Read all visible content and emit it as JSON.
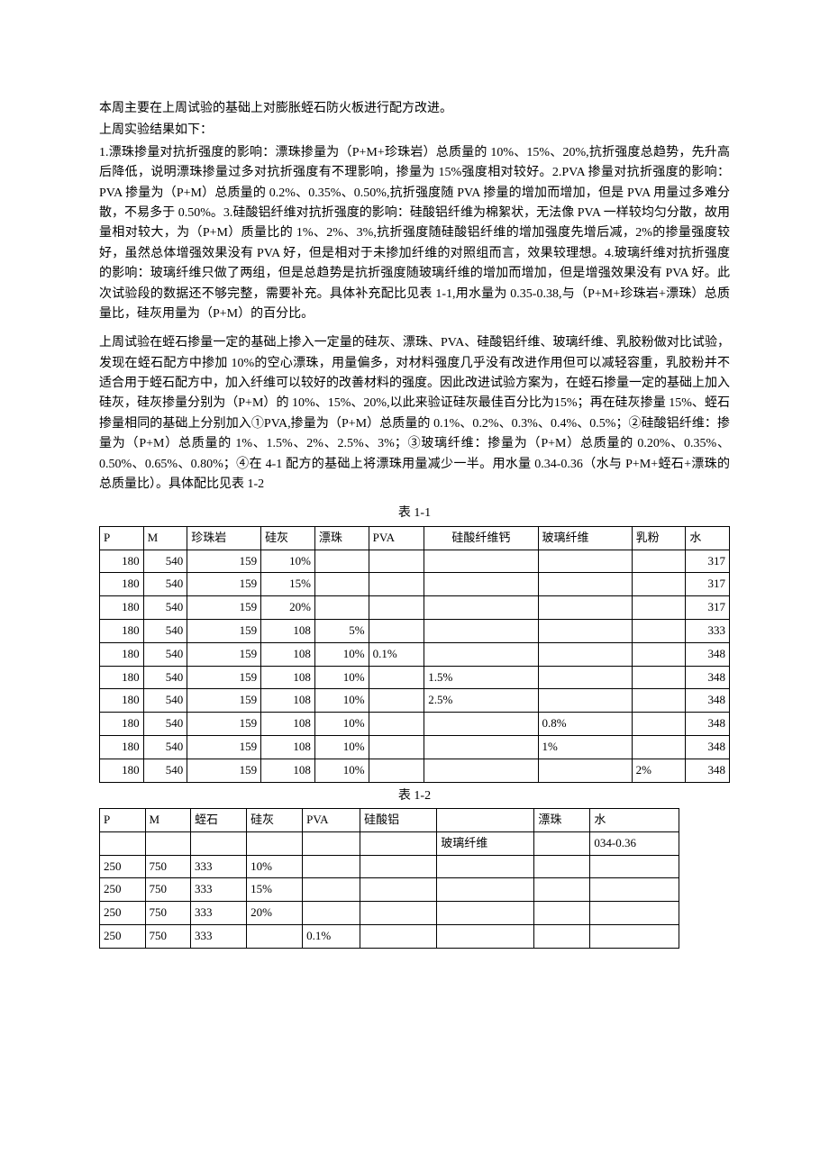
{
  "intro": {
    "line1": "本周主要在上周试验的基础上对膨胀蛭石防火板进行配方改进。",
    "line2": "上周实验结果如下：",
    "para1": "1.漂珠掺量对抗折强度的影响：漂珠掺量为（P+M+珍珠岩）总质量的 10%、15%、20%,抗折强度总趋势，先升高后降低，说明漂珠掺量过多对抗折强度有不理影响，掺量为 15%强度相对较好。2.PVA 掺量对抗折强度的影响：PVA 掺量为（P+M）总质量的 0.2%、0.35%、0.50%,抗折强度随 PVA 掺量的增加而增加，但是 PVA 用量过多难分散，不易多于 0.50%。3.硅酸铝纤维对抗折强度的影响：硅酸铝纤维为棉絮状，无法像 PVA 一样较均匀分散，故用量相对较大，为（P+M）质量比的 1%、2%、3%,抗折强度随硅酸铝纤维的增加强度先增后减，2%的掺量强度较好，虽然总体增强效果没有 PVA 好，但是相对于未掺加纤维的对照组而言，效果较理想。4.玻璃纤维对抗折强度的影响：玻璃纤维只做了两组，但是总趋势是抗折强度随玻璃纤维的增加而增加，但是增强效果没有 PVA 好。此次试验段的数据还不够完整，需要补充。具体补充配比见表 1-1,用水量为 0.35-0.38,与（P+M+珍珠岩+漂珠）总质量比，硅灰用量为（P+M）的百分比。",
    "para2": "上周试验在蛭石掺量一定的基础上掺入一定量的硅灰、漂珠、PVA、硅酸铝纤维、玻璃纤维、乳胶粉做对比试验，发现在蛭石配方中掺加 10%的空心漂珠，用量偏多，对材料强度几乎没有改进作用但可以减轻容重，乳胶粉并不适合用于蛭石配方中，加入纤维可以较好的改善材料的强度。因此改进试验方案为，在蛭石掺量一定的基础上加入硅灰，硅灰掺量分别为（P+M）的 10%、15%、20%,以此来验证硅灰最佳百分比为15%；再在硅灰掺量 15%、蛭石掺量相同的基础上分别加入①PVA,掺量为（P+M）总质量的 0.1%、0.2%、0.3%、0.4%、0.5%；②硅酸铝纤维：掺量为（P+M）总质量的 1%、1.5%、2%、2.5%、3%；③玻璃纤维：掺量为（P+M）总质量的 0.20%、0.35%、0.50%、0.65%、0.80%；④在 4-1 配方的基础上将漂珠用量减少一半。用水量 0.34-0.36（水与 P+M+蛭石+漂珠的总质量比）。具体配比见表 1-2"
  },
  "table1": {
    "caption": "表 1-1",
    "headers": [
      "P",
      "M",
      "珍珠岩",
      "硅灰",
      "漂珠",
      "PVA",
      "硅酸纤维钙",
      "玻璃纤维",
      "乳粉",
      "水"
    ],
    "rows": [
      [
        "180",
        "540",
        "159",
        "10%",
        "",
        "",
        "",
        "",
        "",
        "317"
      ],
      [
        "180",
        "540",
        "159",
        "15%",
        "",
        "",
        "",
        "",
        "",
        "317"
      ],
      [
        "180",
        "540",
        "159",
        "20%",
        "",
        "",
        "",
        "",
        "",
        "317"
      ],
      [
        "180",
        "540",
        "159",
        "108",
        "5%",
        "",
        "",
        "",
        "",
        "333"
      ],
      [
        "180",
        "540",
        "159",
        "108",
        "10%",
        "0.1%",
        "",
        "",
        "",
        "348"
      ],
      [
        "180",
        "540",
        "159",
        "108",
        "10%",
        "",
        "1.5%",
        "",
        "",
        "348"
      ],
      [
        "180",
        "540",
        "159",
        "108",
        "10%",
        "",
        "2.5%",
        "",
        "",
        "348"
      ],
      [
        "180",
        "540",
        "159",
        "108",
        "10%",
        "",
        "",
        "0.8%",
        "",
        "348"
      ],
      [
        "180",
        "540",
        "159",
        "108",
        "10%",
        "",
        "",
        "1%",
        "",
        "348"
      ],
      [
        "180",
        "540",
        "159",
        "108",
        "10%",
        "",
        "",
        "",
        "2%",
        "348"
      ]
    ],
    "col_align": [
      "num",
      "num",
      "num",
      "num",
      "num",
      "left",
      "left",
      "left",
      "left",
      "num"
    ]
  },
  "table2": {
    "caption": "表 1-2",
    "headers_row1": [
      "P",
      "M",
      "蛭石",
      "硅灰",
      "PVA",
      "硅酸铝",
      "",
      "漂珠",
      "水"
    ],
    "headers_row2": [
      "",
      "",
      "",
      "",
      "",
      "",
      "玻璃纤维",
      "",
      "034-0.36"
    ],
    "rows": [
      [
        "250",
        "750",
        "333",
        "10%",
        "",
        "",
        "",
        "",
        ""
      ],
      [
        "250",
        "750",
        "333",
        "15%",
        "",
        "",
        "",
        "",
        ""
      ],
      [
        "250",
        "750",
        "333",
        "20%",
        "",
        "",
        "",
        "",
        ""
      ],
      [
        "250",
        "750",
        "333",
        "",
        "0.1%",
        "",
        "",
        "",
        ""
      ]
    ]
  }
}
